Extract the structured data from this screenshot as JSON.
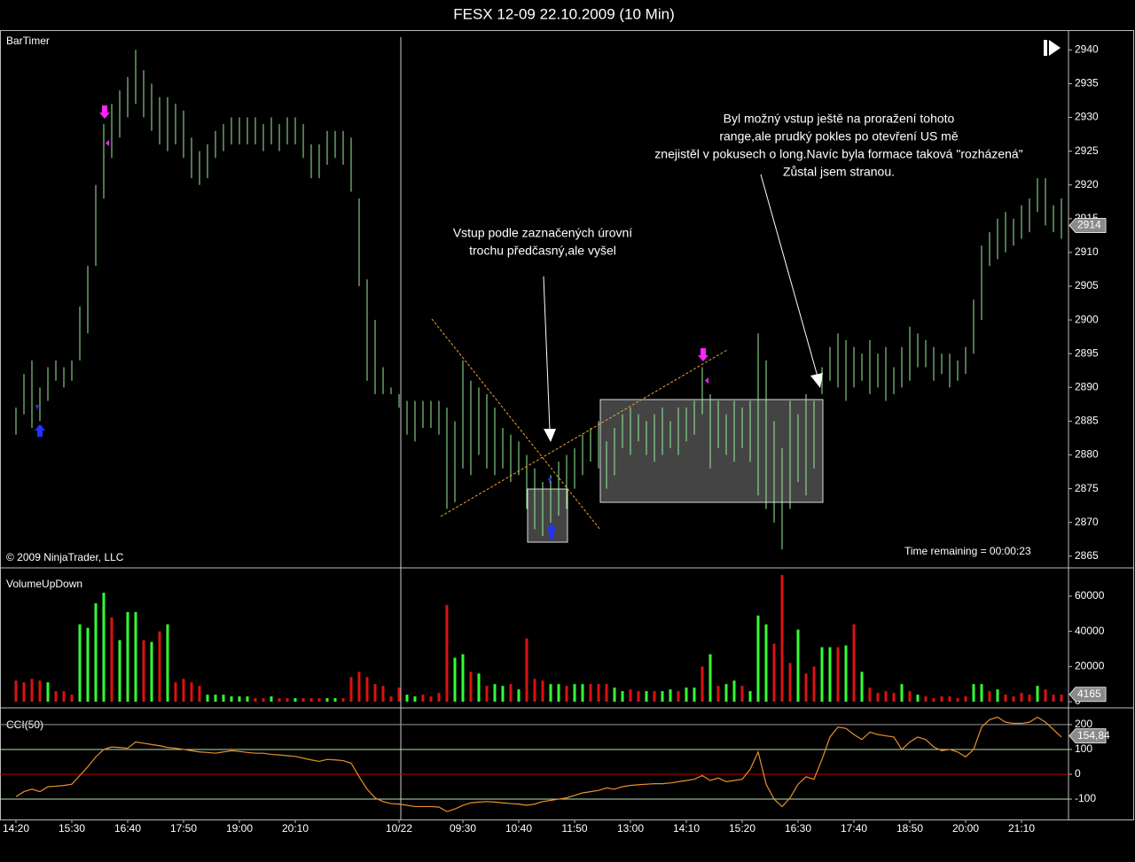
{
  "chart_data": [
    {
      "type": "ohlc",
      "title": "FESX 12-09  22.10.2009 (10 Min)",
      "label": "BarTimer",
      "watermark": "© 2009 NinjaTrader, LLC",
      "timer": "Time remaining = 00:00:23",
      "annotations": [
        {
          "lines": [
            "Vstup podle zaznačených úrovní",
            "trochu předčasný,ale vyšel"
          ]
        },
        {
          "lines": [
            "Byl možný vstup ještě na proražení tohoto",
            "range,ale prudký pokles po otevření US mě",
            "znejistěl v pokusech o long.Navíc byla formace taková \"rozházená\"",
            "Zůstal jsem stranou."
          ]
        }
      ],
      "color": "#98f098",
      "high": [
        2887,
        2892,
        2894,
        2890,
        2893,
        2894,
        2893,
        2894,
        2902,
        2908,
        2920,
        2929,
        2932,
        2934,
        2936,
        2940,
        2937,
        2935,
        2933,
        2933,
        2932,
        2931,
        2927,
        2925,
        2926,
        2928,
        2929,
        2930,
        2930,
        2930,
        2930,
        2929,
        2930,
        2929,
        2930,
        2930,
        2929,
        2926,
        2926,
        2928,
        2928,
        2928,
        2927,
        2918,
        2906,
        2900,
        2893,
        2890,
        2889,
        2888,
        2888,
        2888,
        2888,
        2888,
        2887,
        2885,
        2894,
        2891,
        2890,
        2889,
        2887,
        2884,
        2883,
        2882,
        2880,
        2878,
        2876,
        2877,
        2879,
        2880,
        2881,
        2883,
        2884,
        2885,
        2882,
        2884,
        2886,
        2887,
        2886,
        2885,
        2886,
        2887,
        2885,
        2887,
        2887,
        2888,
        2893,
        2889,
        2888,
        2886,
        2888,
        2887,
        2888,
        2898,
        2894,
        2885,
        2881,
        2888,
        2886,
        2889,
        2888,
        2893,
        2896,
        2898,
        2897,
        2896,
        2895,
        2897,
        2895,
        2896,
        2893,
        2896,
        2899,
        2898,
        2897,
        2896,
        2895,
        2895,
        2894,
        2896,
        2903,
        2911,
        2913,
        2915,
        2916,
        2915,
        2917,
        2918,
        2921,
        2921,
        2917,
        2918
      ],
      "low": [
        2883,
        2886,
        2884,
        2885,
        2888,
        2891,
        2890,
        2891,
        2894,
        2898,
        2908,
        2918,
        2924,
        2927,
        2930,
        2932,
        2930,
        2928,
        2926,
        2925,
        2926,
        2924,
        2921,
        2920,
        2921,
        2924,
        2925,
        2926,
        2926,
        2926,
        2926,
        2925,
        2926,
        2925,
        2926,
        2926,
        2924,
        2921,
        2921,
        2923,
        2924,
        2923,
        2919,
        2905,
        2891,
        2889,
        2889,
        2889,
        2887,
        2883,
        2882,
        2884,
        2884,
        2883,
        2872,
        2873,
        2878,
        2877,
        2880,
        2878,
        2877,
        2878,
        2876,
        2877,
        2872,
        2869,
        2868,
        2870,
        2871,
        2872,
        2875,
        2877,
        2879,
        2878,
        2875,
        2877,
        2881,
        2880,
        2882,
        2880,
        2879,
        2880,
        2881,
        2880,
        2882,
        2883,
        2886,
        2878,
        2881,
        2880,
        2879,
        2881,
        2879,
        2874,
        2872,
        2870,
        2866,
        2872,
        2876,
        2874,
        2878,
        2889,
        2891,
        2890,
        2888,
        2890,
        2891,
        2889,
        2890,
        2888,
        2889,
        2890,
        2891,
        2893,
        2893,
        2891,
        2892,
        2890,
        2891,
        2892,
        2895,
        2900,
        2908,
        2909,
        2910,
        2911,
        2912,
        2913,
        2916,
        2914,
        2913,
        2912
      ],
      "ylim": [
        2863.4,
        2942.8
      ],
      "yticks": [
        2865,
        2870,
        2875,
        2880,
        2885,
        2890,
        2895,
        2900,
        2905,
        2910,
        2915,
        2920,
        2925,
        2930,
        2935,
        2940
      ],
      "last_value": 2914
    },
    {
      "type": "bar",
      "label": "VolumeUpDown",
      "values": [
        12000,
        11000,
        13000,
        12000,
        11000,
        6000,
        6000,
        4000,
        44000,
        42000,
        56000,
        62000,
        48000,
        35000,
        51000,
        51000,
        35000,
        34000,
        40000,
        44000,
        11000,
        13000,
        11000,
        9000,
        4000,
        4000,
        4000,
        3000,
        3000,
        3000,
        2000,
        2000,
        3000,
        2000,
        2000,
        2000,
        2000,
        2000,
        2000,
        2000,
        2000,
        2000,
        14000,
        17000,
        14000,
        10000,
        9000,
        3000,
        8000,
        4000,
        3000,
        4000,
        3000,
        5000,
        55000,
        25000,
        27000,
        17000,
        16000,
        9000,
        10000,
        9000,
        10000,
        7000,
        36000,
        13000,
        12000,
        10000,
        10000,
        9000,
        10000,
        10000,
        10000,
        10000,
        10000,
        8000,
        6000,
        7000,
        6000,
        6000,
        6000,
        6000,
        7000,
        6000,
        8000,
        8000,
        20000,
        27000,
        9000,
        10000,
        12000,
        9000,
        6000,
        49000,
        44000,
        33000,
        72000,
        22000,
        41000,
        16000,
        20000,
        31000,
        31000,
        31000,
        32000,
        44000,
        17000,
        8000,
        5000,
        6000,
        5000,
        10000,
        6000,
        4000,
        3000,
        2000,
        3000,
        3000,
        2000,
        3000,
        10000,
        10000,
        6000,
        7000,
        4000,
        3000,
        5000,
        4000,
        9000,
        7000,
        4000,
        4000
      ],
      "colors": [
        "#d11",
        "#d11",
        "#d11",
        "#d11",
        "#3f3",
        "#d11",
        "#d11",
        "#d11",
        "#3f3",
        "#3f3",
        "#3f3",
        "#3f3",
        "#d11",
        "#3f3",
        "#3f3",
        "#3f3",
        "#d11",
        "#3f3",
        "#d11",
        "#3f3",
        "#d11",
        "#d11",
        "#d11",
        "#d11",
        "#3f3",
        "#3f3",
        "#3f3",
        "#3f3",
        "#3f3",
        "#3f3",
        "#d11",
        "#d11",
        "#3f3",
        "#d11",
        "#d11",
        "#3f3",
        "#d11",
        "#d11",
        "#d11",
        "#3f3",
        "#3f3",
        "#d11",
        "#d11",
        "#d11",
        "#d11",
        "#d11",
        "#d11",
        "#d11",
        "#d11",
        "#3f3",
        "#3f3",
        "#d11",
        "#d11",
        "#d11",
        "#d11",
        "#3f3",
        "#3f3",
        "#d11",
        "#3f3",
        "#d11",
        "#3f3",
        "#3f3",
        "#d11",
        "#3f3",
        "#d11",
        "#d11",
        "#d11",
        "#3f3",
        "#3f3",
        "#d11",
        "#3f3",
        "#3f3",
        "#d11",
        "#d11",
        "#d11",
        "#3f3",
        "#3f3",
        "#d11",
        "#d11",
        "#3f3",
        "#d11",
        "#3f3",
        "#3f3",
        "#d11",
        "#3f3",
        "#3f3",
        "#d11",
        "#3f3",
        "#d11",
        "#3f3",
        "#3f3",
        "#d11",
        "#3f3",
        "#3f3",
        "#3f3",
        "#d11",
        "#d11",
        "#d11",
        "#3f3",
        "#d11",
        "#d11",
        "#3f3",
        "#3f3",
        "#d11",
        "#3f3",
        "#d11",
        "#3f3",
        "#d11",
        "#d11",
        "#d11",
        "#d11",
        "#3f3",
        "#d11",
        "#3f3",
        "#d11",
        "#d11",
        "#d11",
        "#d11",
        "#d11",
        "#d11",
        "#3f3",
        "#3f3",
        "#d11",
        "#3f3",
        "#d11",
        "#d11",
        "#d11",
        "#d11",
        "#3f3",
        "#d11",
        "#d11",
        "#d11"
      ],
      "ylim": [
        -3000,
        75600
      ],
      "yticks": [
        0,
        20000,
        40000,
        60000
      ],
      "last_value": 4165
    },
    {
      "type": "line",
      "label": "CCI(50)",
      "color": "#e8902a",
      "categories": [
        "14:20",
        null,
        null,
        null,
        null,
        null,
        null,
        "15:30",
        null,
        null,
        null,
        null,
        null,
        null,
        "16:40",
        null,
        null,
        null,
        null,
        null,
        null,
        "17:50",
        null,
        null,
        null,
        null,
        null,
        null,
        "19:00",
        null,
        null,
        null,
        null,
        null,
        null,
        "20:10",
        null,
        null,
        null,
        null,
        null,
        null,
        null,
        null,
        null,
        null,
        null,
        null,
        "10/22",
        null,
        null,
        null,
        null,
        null,
        null,
        null,
        "09:30",
        null,
        null,
        null,
        null,
        null,
        null,
        "10:40",
        null,
        null,
        null,
        null,
        null,
        null,
        "11:50",
        null,
        null,
        null,
        null,
        null,
        null,
        "13:00",
        null,
        null,
        null,
        null,
        null,
        null,
        "14:10",
        null,
        null,
        null,
        null,
        null,
        null,
        "15:20",
        null,
        null,
        null,
        null,
        null,
        null,
        "16:30",
        null,
        null,
        null,
        null,
        null,
        null,
        "17:40",
        null,
        null,
        null,
        null,
        null,
        null,
        "18:50",
        null,
        null,
        null,
        null,
        null,
        null,
        "20:00",
        null,
        null,
        null,
        null,
        null,
        null,
        "21:10",
        null,
        null,
        null,
        null,
        null
      ],
      "values": [
        -90,
        -70,
        -60,
        -70,
        -50,
        -48,
        -45,
        -40,
        -5,
        30,
        70,
        100,
        110,
        108,
        105,
        130,
        125,
        120,
        115,
        108,
        105,
        100,
        95,
        90,
        88,
        85,
        90,
        95,
        92,
        88,
        85,
        85,
        80,
        78,
        75,
        72,
        65,
        58,
        52,
        60,
        58,
        55,
        45,
        -10,
        -60,
        -95,
        -110,
        -118,
        -120,
        -125,
        -130,
        -130,
        -130,
        -132,
        -150,
        -140,
        -125,
        -115,
        -112,
        -110,
        -112,
        -115,
        -118,
        -120,
        -125,
        -120,
        -110,
        -105,
        -100,
        -95,
        -85,
        -75,
        -70,
        -65,
        -55,
        -60,
        -50,
        -45,
        -42,
        -40,
        -38,
        -38,
        -35,
        -30,
        -25,
        -20,
        -5,
        -25,
        -15,
        -30,
        -25,
        -20,
        20,
        90,
        -40,
        -100,
        -130,
        -95,
        -40,
        -10,
        -20,
        60,
        150,
        190,
        185,
        160,
        140,
        170,
        160,
        155,
        150,
        100,
        130,
        150,
        140,
        110,
        95,
        100,
        90,
        70,
        100,
        190,
        220,
        230,
        210,
        205,
        205,
        210,
        230,
        210,
        180,
        150
      ],
      "ylim": [
        -182,
        264
      ],
      "yticks": [
        200,
        100,
        0,
        -100
      ],
      "grid_colors": [
        "#9a9a9a",
        "#b8e0b0",
        "#c00000",
        "#b8e0b0"
      ],
      "last_value": {
        "value": 154.84,
        "label": "154,84"
      }
    }
  ]
}
